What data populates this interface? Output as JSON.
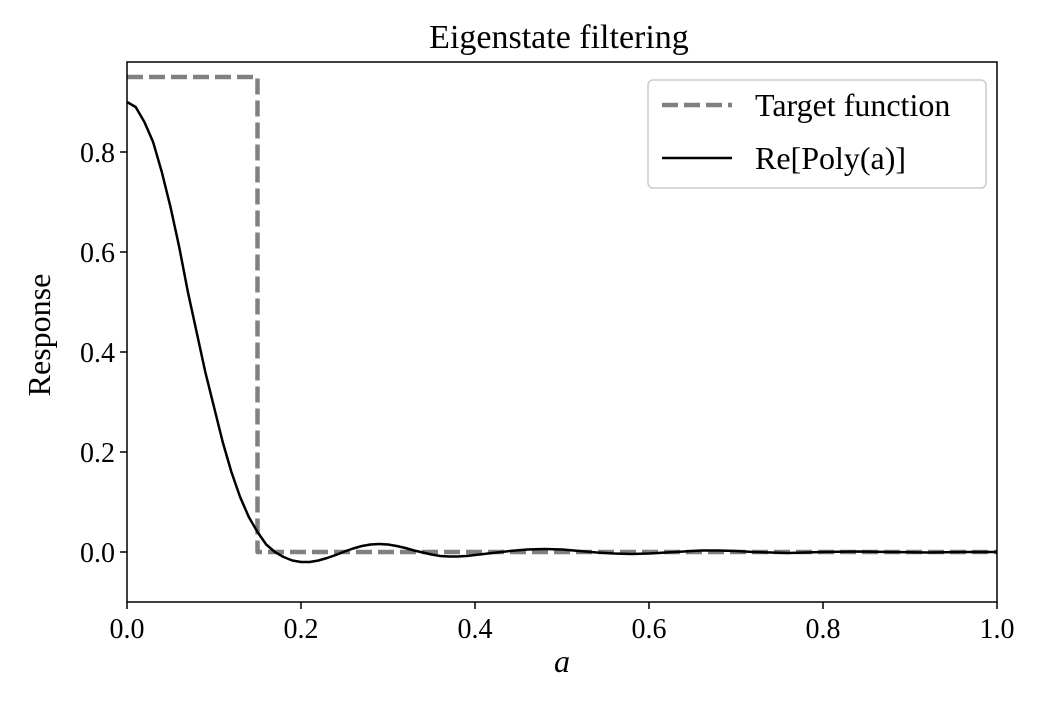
{
  "chart_data": {
    "type": "line",
    "title": "Eigenstate filtering",
    "xlabel": "a",
    "ylabel": "Response",
    "xlim": [
      0.0,
      1.0
    ],
    "ylim": [
      -0.1,
      0.98
    ],
    "x_ticks": [
      0.0,
      0.2,
      0.4,
      0.6,
      0.8,
      1.0
    ],
    "x_tick_labels": [
      "0.0",
      "0.2",
      "0.4",
      "0.6",
      "0.8",
      "1.0"
    ],
    "y_ticks": [
      0.0,
      0.2,
      0.4,
      0.6,
      0.8
    ],
    "y_tick_labels": [
      "0.0",
      "0.2",
      "0.4",
      "0.6",
      "0.8"
    ],
    "grid": false,
    "legend_position": "top-right",
    "series": [
      {
        "name": "Target function",
        "style": "dashed",
        "color": "#808080",
        "x": [
          0.0,
          0.15,
          0.15,
          1.0
        ],
        "y": [
          0.95,
          0.95,
          0.0,
          0.0
        ]
      },
      {
        "name": "Re[Poly(a)]",
        "style": "solid",
        "color": "#000000",
        "x": [
          0.0,
          0.01,
          0.02,
          0.03,
          0.04,
          0.05,
          0.06,
          0.07,
          0.08,
          0.09,
          0.1,
          0.11,
          0.12,
          0.13,
          0.14,
          0.15,
          0.16,
          0.17,
          0.18,
          0.19,
          0.2,
          0.21,
          0.22,
          0.23,
          0.24,
          0.25,
          0.26,
          0.27,
          0.28,
          0.29,
          0.3,
          0.31,
          0.32,
          0.33,
          0.34,
          0.35,
          0.36,
          0.37,
          0.38,
          0.39,
          0.4,
          0.42,
          0.44,
          0.46,
          0.48,
          0.5,
          0.52,
          0.54,
          0.56,
          0.58,
          0.6,
          0.62,
          0.64,
          0.66,
          0.68,
          0.7,
          0.72,
          0.74,
          0.76,
          0.78,
          0.8,
          0.84,
          0.88,
          0.92,
          0.96,
          1.0
        ],
        "y": [
          0.9,
          0.89,
          0.86,
          0.82,
          0.76,
          0.69,
          0.61,
          0.52,
          0.44,
          0.36,
          0.29,
          0.22,
          0.16,
          0.11,
          0.07,
          0.04,
          0.015,
          0.0,
          -0.01,
          -0.017,
          -0.02,
          -0.02,
          -0.017,
          -0.012,
          -0.006,
          0.001,
          0.007,
          0.012,
          0.015,
          0.016,
          0.015,
          0.012,
          0.008,
          0.003,
          -0.001,
          -0.005,
          -0.008,
          -0.009,
          -0.009,
          -0.008,
          -0.006,
          -0.002,
          0.002,
          0.005,
          0.006,
          0.005,
          0.002,
          -0.001,
          -0.003,
          -0.004,
          -0.003,
          -0.001,
          0.001,
          0.003,
          0.003,
          0.002,
          0.0,
          -0.001,
          -0.002,
          -0.001,
          0.0,
          0.001,
          0.0,
          -0.001,
          0.0,
          0.0
        ]
      }
    ]
  }
}
